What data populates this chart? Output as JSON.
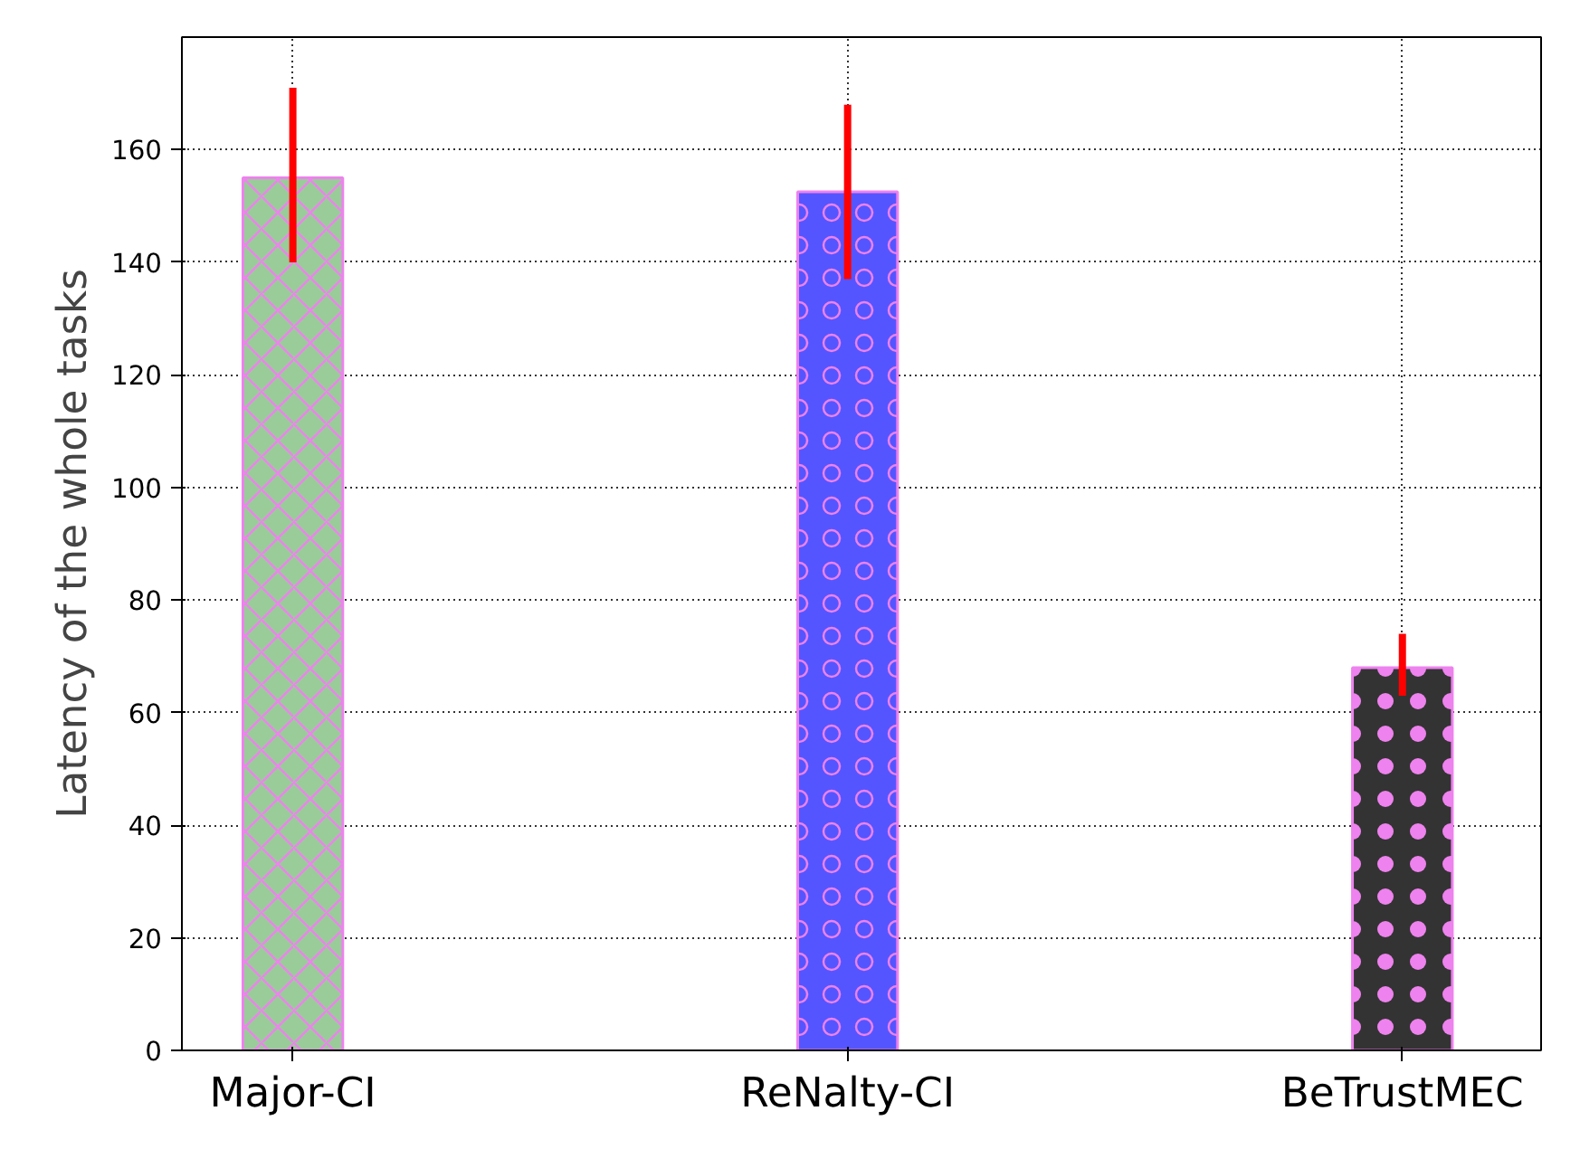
{
  "chart_data": {
    "type": "bar",
    "ylabel": "Latency of the whole tasks",
    "categories": [
      "Major-CI",
      "ReNalty-CI",
      "BeTrustMEC"
    ],
    "values": [
      155,
      152.5,
      68
    ],
    "colors": [
      "#99cc99",
      "#5555ff",
      "#333333"
    ],
    "errors": [
      [
        140,
        171
      ],
      [
        137,
        168
      ],
      [
        63,
        74
      ]
    ],
    "ylim": [
      0,
      180
    ],
    "yticks": [
      0,
      20,
      40,
      60,
      80,
      100,
      120,
      140,
      160
    ],
    "grid": true
  }
}
